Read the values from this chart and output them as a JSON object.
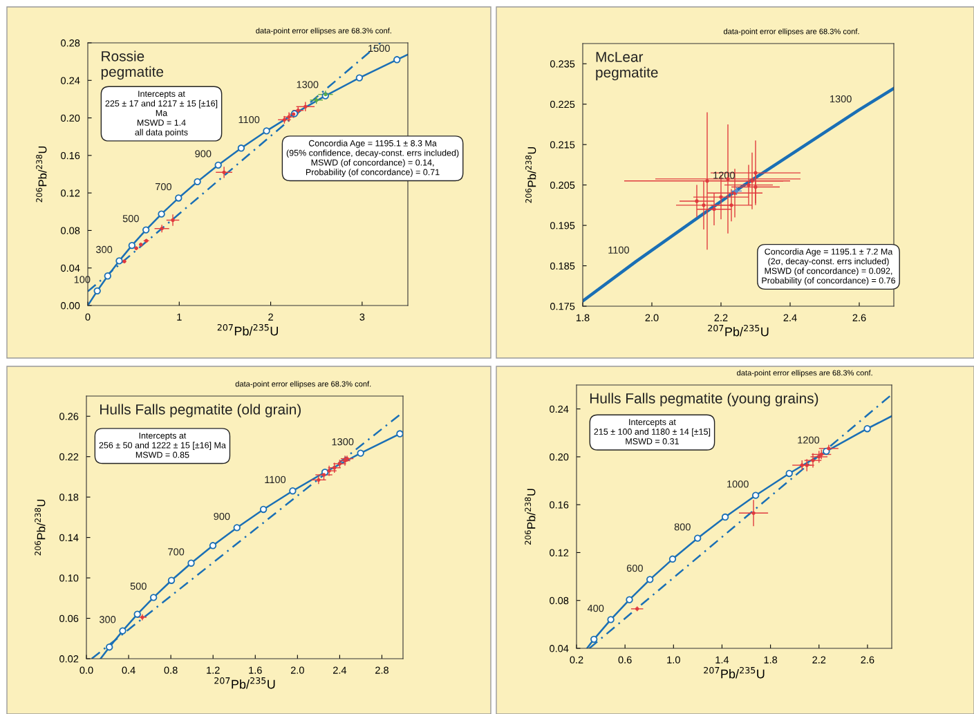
{
  "chart_data": [
    {
      "type": "line",
      "title": "Rossie\npegmatite",
      "xlabel": "$^{207}$Pb/$^{235}$U",
      "ylabel": "$^{206}$Pb/$^{238}$U",
      "xlim": [
        0,
        3.5
      ],
      "ylim": [
        0,
        0.28
      ],
      "xticks": [
        0,
        1,
        2,
        3
      ],
      "yticks": [
        {
          "value": 0,
          "label": "0.00"
        },
        0.04,
        0.08,
        0.12,
        0.16,
        {
          "value": 0.2,
          "label": "0.20"
        },
        0.24,
        0.28
      ],
      "series": [
        {
          "color": "#1a6fb5",
          "line_style": "solid",
          "marker": "none",
          "x": [
            0,
            0.1035,
            0.2177,
            0.3438,
            0.4828,
            0.6363,
            0.8056,
            0.9925,
            1.1987,
            1.4264,
            1.6775,
            1.9546,
            2.2605,
            2.5982,
            2.9701,
            3.3807,
            3.5
          ],
          "values": [
            0,
            0.0156,
            0.0315,
            0.0476,
            0.064,
            0.0806,
            0.0975,
            0.1146,
            0.132,
            0.1497,
            0.1678,
            0.1861,
            0.2046,
            0.2235,
            0.2427,
            0.2621,
            0.2675
          ]
        },
        {
          "type": "scatter",
          "color": "#1a6fb5",
          "marker": "circle",
          "x": [
            0.1035,
            0.2177,
            0.3438,
            0.4828,
            0.6363,
            0.8056,
            0.9925,
            1.1987,
            1.4264,
            1.6775,
            1.9546,
            2.2605,
            2.5982,
            2.9701,
            3.3807
          ],
          "values": [
            0.0156,
            0.0315,
            0.0476,
            0.064,
            0.0806,
            0.0975,
            0.1146,
            0.132,
            0.1497,
            0.1678,
            0.1861,
            0.2046,
            0.2235,
            0.2427,
            0.2621
          ]
        },
        {
          "color": "#1a6fb5",
          "line_style": "dashed",
          "marker": "none",
          "x": [
            0,
            3.2
          ],
          "values": [
            0.015,
            0.28
          ]
        },
        {
          "type": "scatter",
          "color": "#e03a3e",
          "marker": "circle",
          "x": [
            0.4,
            0.53,
            0.58,
            0.64,
            0.81,
            0.93,
            1.49,
            2.15,
            2.2,
            2.25,
            2.3,
            2.38
          ],
          "values": [
            0.047,
            0.061,
            0.065,
            0.069,
            0.082,
            0.091,
            0.142,
            0.198,
            0.201,
            0.204,
            0.208,
            0.212
          ],
          "xerrors": [
            0.02,
            0.02,
            0.02,
            0.03,
            0.08,
            0.07,
            0.09,
            0.07,
            0.06,
            0.05,
            0.06,
            0.1
          ],
          "errors": [
            0.002,
            0.002,
            0.002,
            0.002,
            0.004,
            0.006,
            0.006,
            0.004,
            0.005,
            0.004,
            0.004,
            0.005
          ]
        },
        {
          "type": "scatter",
          "color": "#5aab47",
          "marker": "circle",
          "x": [
            2.5,
            2.6
          ],
          "values": [
            0.219,
            0.225
          ],
          "xerrors": [
            0.07,
            0.08
          ],
          "errors": [
            0.004,
            0.004
          ]
        }
      ],
      "annotations": [
        "data-point error ellipses are 68.3% conf.",
        "Intercepts at\n225 ± 17 and 1217 ± 15 [±16]\nMa\nMSWD = 1.4\nall data points",
        "Concordia Age = 1195.1 ± 8.3 Ma\n(95% confidence, decay-const. errs included)\nMSWD (of concordance) = 0.14,\nProbability (of concordance) = 0.71",
        {
          "text": "100",
          "x": 0.1035,
          "y": 0.0156
        },
        {
          "text": "300",
          "x": 0.3438,
          "y": 0.0476
        },
        {
          "text": "500",
          "x": 0.6363,
          "y": 0.0806
        },
        {
          "text": "700",
          "x": 0.9925,
          "y": 0.1146
        },
        {
          "text": "900",
          "x": 1.4264,
          "y": 0.1497
        },
        {
          "text": "1100",
          "x": 1.9546,
          "y": 0.1861
        },
        {
          "text": "1300",
          "x": 2.5982,
          "y": 0.2235
        },
        {
          "text": "1500",
          "x": 3.3807,
          "y": 0.2621
        }
      ]
    },
    {
      "type": "line",
      "title": "McLear\npegmatite",
      "xlabel": "$^{207}$Pb/$^{235}$U",
      "ylabel": "$^{206}$Pb/$^{238}$U",
      "xlim": [
        1.8,
        2.7
      ],
      "ylim": [
        0.175,
        0.24
      ],
      "xticks": [
        1.8,
        {
          "value": 2.0,
          "label": "2.0"
        },
        2.2,
        2.4,
        2.6
      ],
      "yticks": [
        0.175,
        0.185,
        0.195,
        0.205,
        0.215,
        0.225,
        0.235
      ],
      "series": [
        {
          "color": "#1a6fb5",
          "line_style": "solid",
          "marker": "none",
          "x": [
            1.8,
            1.9546,
            2.2605,
            2.5982,
            2.7
          ],
          "values": [
            0.1763,
            0.1861,
            0.2046,
            0.2235,
            0.2289
          ]
        },
        {
          "type": "scatter",
          "color": "#e03a3e",
          "marker": "circle",
          "x": [
            2.16,
            2.22,
            2.3,
            2.29,
            2.15,
            2.2,
            2.24,
            2.28,
            2.18,
            2.3,
            2.13,
            2.23
          ],
          "values": [
            0.206,
            0.2065,
            0.208,
            0.206,
            0.2,
            0.202,
            0.203,
            0.205,
            0.199,
            0.2045,
            0.201,
            0.2
          ],
          "xerrors": [
            0.24,
            0.21,
            0.13,
            0.09,
            0.08,
            0.08,
            0.08,
            0.07,
            0.05,
            0.07,
            0.05,
            0.06
          ],
          "errors": [
            0.017,
            0.0135,
            0.008,
            0.007,
            0.006,
            0.0055,
            0.006,
            0.005,
            0.004,
            0.004,
            0.004,
            0.004
          ]
        },
        {
          "type": "scatter",
          "color": "#5b8fd0",
          "marker": "circle",
          "x": [
            2.245
          ],
          "values": [
            0.2035
          ],
          "xerrors": [
            0.015
          ],
          "errors": [
            0.001
          ]
        }
      ],
      "annotations": [
        "data-point error ellipses are 68.3% conf.",
        "Concordia Age = 1195.1 ± 7.2 Ma\n(2σ, decay-const. errs included)\nMSWD (of concordance) = 0.092,\nProbability (of concordance) = 0.76",
        {
          "text": "1100",
          "x": 1.9546,
          "y": 0.1861
        },
        {
          "text": "1200",
          "x": 2.2605,
          "y": 0.2046
        },
        {
          "text": "1300",
          "x": 2.5982,
          "y": 0.2235
        }
      ]
    },
    {
      "type": "line",
      "title": "Hulls Falls pegmatite (old grain)",
      "xlabel": "$^{207}$Pb/$^{235}$U",
      "ylabel": "$^{206}$Pb/$^{238}$U",
      "xlim": [
        0,
        3.0
      ],
      "ylim": [
        0.02,
        0.28
      ],
      "xticks": [
        {
          "value": 0,
          "label": "0.0"
        },
        0.4,
        0.8,
        1.2,
        1.6,
        {
          "value": 2.0,
          "label": "2.0"
        },
        2.4,
        2.8
      ],
      "yticks": [
        0.02,
        0.06,
        {
          "value": 0.1,
          "label": "0.10"
        },
        0.14,
        0.18,
        0.22,
        0.26
      ],
      "series": [
        {
          "color": "#1a6fb5",
          "line_style": "solid",
          "marker": "none",
          "x": [
            0.134,
            0.2177,
            0.3438,
            0.4828,
            0.6363,
            0.8056,
            0.9925,
            1.1987,
            1.4264,
            1.6775,
            1.9546,
            2.2605,
            2.5982,
            2.9701,
            3.0
          ],
          "values": [
            0.02,
            0.0315,
            0.0476,
            0.064,
            0.0806,
            0.0975,
            0.1146,
            0.132,
            0.1497,
            0.1678,
            0.1861,
            0.2046,
            0.2235,
            0.2427,
            0.2442
          ]
        },
        {
          "type": "scatter",
          "color": "#1a6fb5",
          "marker": "circle",
          "x": [
            0.2177,
            0.3438,
            0.4828,
            0.6363,
            0.8056,
            0.9925,
            1.1987,
            1.4264,
            1.6775,
            1.9546,
            2.2605,
            2.5982,
            2.9701
          ],
          "values": [
            0.0315,
            0.0476,
            0.064,
            0.0806,
            0.0975,
            0.1146,
            0.132,
            0.1497,
            0.1678,
            0.1861,
            0.2046,
            0.2235,
            0.2427
          ]
        },
        {
          "color": "#1a6fb5",
          "line_style": "dashed",
          "marker": "none",
          "x": [
            0.05,
            3.0
          ],
          "values": [
            0.02,
            0.264
          ]
        },
        {
          "type": "scatter",
          "color": "#e03a3e",
          "marker": "circle",
          "x": [
            0.53,
            2.2,
            2.25,
            2.3,
            2.35,
            2.4,
            2.45,
            2.47
          ],
          "values": [
            0.061,
            0.197,
            0.202,
            0.206,
            0.209,
            0.213,
            0.216,
            0.218
          ],
          "xerrors": [
            0.04,
            0.07,
            0.08,
            0.07,
            0.06,
            0.06,
            0.05,
            0.06
          ],
          "errors": [
            0.003,
            0.004,
            0.005,
            0.005,
            0.005,
            0.004,
            0.005,
            0.003
          ]
        }
      ],
      "annotations": [
        "data-point error ellipses are 68.3% conf.",
        "Intercepts at\n256 ± 50 and 1222 ± 15 [±16] Ma\nMSWD = 0.85",
        {
          "text": "300",
          "x": 0.3438,
          "y": 0.0476
        },
        {
          "text": "500",
          "x": 0.6363,
          "y": 0.0806
        },
        {
          "text": "700",
          "x": 0.9925,
          "y": 0.1146
        },
        {
          "text": "900",
          "x": 1.4264,
          "y": 0.1497
        },
        {
          "text": "1100",
          "x": 1.9546,
          "y": 0.1861
        },
        {
          "text": "1300",
          "x": 2.5982,
          "y": 0.2235
        }
      ]
    },
    {
      "type": "line",
      "title": "Hulls Falls pegmatite (young grains)",
      "xlabel": "$^{207}$Pb/$^{235}$U",
      "ylabel": "$^{206}$Pb/$^{238}$U",
      "xlim": [
        0.2,
        2.8
      ],
      "ylim": [
        0.04,
        0.26
      ],
      "xticks": [
        0.2,
        0.6,
        {
          "value": 1.0,
          "label": "1.0"
        },
        1.4,
        1.8,
        2.2,
        2.6
      ],
      "yticks": [
        0.04,
        0.08,
        0.12,
        0.16,
        {
          "value": 0.2,
          "label": "0.20"
        },
        0.24
      ],
      "series": [
        {
          "color": "#1a6fb5",
          "line_style": "solid",
          "marker": "none",
          "x": [
            0.286,
            0.3438,
            0.4828,
            0.6363,
            0.8056,
            0.9925,
            1.1987,
            1.4264,
            1.6775,
            1.9546,
            2.2605,
            2.5982,
            2.8
          ],
          "values": [
            0.04,
            0.0476,
            0.064,
            0.0806,
            0.0975,
            0.1146,
            0.132,
            0.1497,
            0.1678,
            0.1861,
            0.2046,
            0.2235,
            0.234
          ]
        },
        {
          "type": "scatter",
          "color": "#1a6fb5",
          "marker": "circle",
          "x": [
            0.3438,
            0.4828,
            0.6363,
            0.8056,
            0.9925,
            1.1987,
            1.4264,
            1.6775,
            1.9546,
            2.2605,
            2.5982
          ],
          "values": [
            0.0476,
            0.064,
            0.0806,
            0.0975,
            0.1146,
            0.132,
            0.1497,
            0.1678,
            0.1861,
            0.2046,
            0.2235
          ]
        },
        {
          "color": "#1a6fb5",
          "line_style": "dashed",
          "marker": "none",
          "x": [
            0.306,
            2.8
          ],
          "values": [
            0.04,
            0.252
          ]
        },
        {
          "type": "scatter",
          "color": "#e03a3e",
          "marker": "circle",
          "x": [
            0.7,
            1.66,
            2.06,
            2.1,
            2.15,
            2.2,
            2.22,
            2.28
          ],
          "values": [
            0.073,
            0.153,
            0.193,
            0.193,
            0.197,
            0.2,
            0.202,
            0.207
          ],
          "xerrors": [
            0.05,
            0.12,
            0.08,
            0.06,
            0.07,
            0.07,
            0.08,
            0.08
          ],
          "errors": [
            0.002,
            0.011,
            0.004,
            0.005,
            0.006,
            0.005,
            0.004,
            0.003
          ]
        }
      ],
      "annotations": [
        "data-point error ellipses are 68.3% conf.",
        "Intercepts at\n215 ± 100 and 1180 ± 14 [±15]\nMSWD = 0.31",
        {
          "text": "400",
          "x": 0.4828,
          "y": 0.064
        },
        {
          "text": "600",
          "x": 0.8056,
          "y": 0.0975
        },
        {
          "text": "800",
          "x": 1.1987,
          "y": 0.132
        },
        {
          "text": "1000",
          "x": 1.6775,
          "y": 0.1678
        },
        {
          "text": "1200",
          "x": 2.2605,
          "y": 0.2046
        }
      ]
    }
  ]
}
